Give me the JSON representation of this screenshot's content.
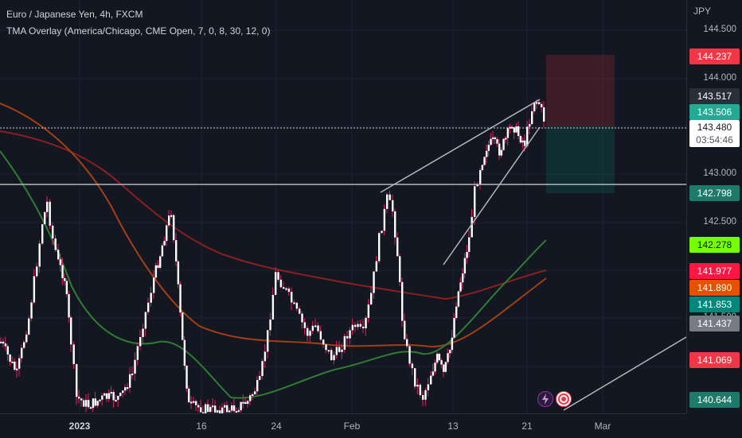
{
  "chart": {
    "symbol_line": "Euro / Japanese Yen, 4h, FXCM",
    "indicator_line": "TMA Overlay (America/Chicago, CME Open, 7, 0, 8, 30, 12, 0)",
    "currency": "JPY"
  },
  "price_axis": {
    "labels": [
      "144.500",
      "144.000",
      "143.000",
      "142.500",
      "141.500",
      "141.000"
    ]
  },
  "price_tags": [
    {
      "value": "144.237",
      "color": "#f23645",
      "text_color": "#ffffff"
    },
    {
      "value": "143.517",
      "color": "#2a2e39",
      "text_color": "#ffffff"
    },
    {
      "value": "143.506",
      "color": "#22ab94",
      "text_color": "#ffffff"
    },
    {
      "value": "142.798",
      "color": "#1e7b69",
      "text_color": "#ffffff"
    },
    {
      "value": "142.278",
      "color": "#76ff03",
      "text_color": "#131722"
    },
    {
      "value": "141.977",
      "color": "#ff1744",
      "text_color": "#ffffff"
    },
    {
      "value": "141.890",
      "color": "#e65100",
      "text_color": "#ffffff"
    },
    {
      "value": "141.853",
      "color": "#00897b",
      "text_color": "#ffffff"
    },
    {
      "value": "141.437",
      "color": "#787b86",
      "text_color": "#ffffff"
    },
    {
      "value": "141.069",
      "color": "#f23645",
      "text_color": "#ffffff"
    },
    {
      "value": "140.644",
      "color": "#1e7b69",
      "text_color": "#ffffff"
    }
  ],
  "current_price": {
    "value": "143.480",
    "countdown": "03:54:46"
  },
  "time_axis": {
    "labels": [
      "2023",
      "16",
      "24",
      "Feb",
      "13",
      "21",
      "Mar"
    ]
  },
  "icons": [
    "lightning-icon",
    "record-icon"
  ],
  "colors": {
    "background": "#131722",
    "candle": "#ffffff",
    "wick": "#e91e63",
    "tma_green": "#2e7d32",
    "tma_red": "#b71c1c",
    "tma_orange": "#bf360c"
  }
}
